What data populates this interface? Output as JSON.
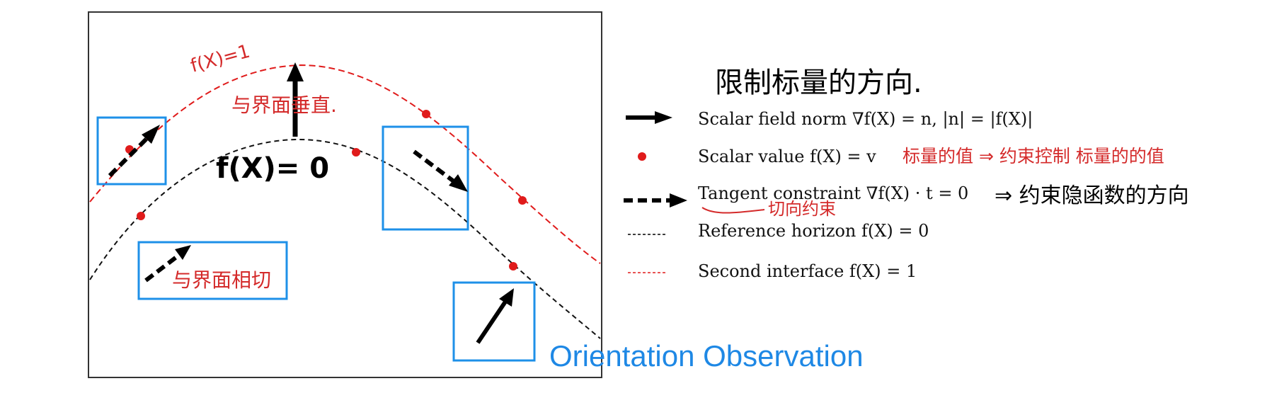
{
  "colors": {
    "black": "#000000",
    "red": "#e01b1b",
    "blue_box": "#1e90e8",
    "handwriting_red": "#d42a2a",
    "caption_blue": "#1e88e5"
  },
  "plot": {
    "curve_labels": {
      "upper": "f(X)=1",
      "lower": "f(X)= 0"
    },
    "annotations": {
      "top_label": "与界面垂直.",
      "box_label": "与界面相切"
    }
  },
  "legend": {
    "items": [
      {
        "icon": "solid-arrow-icon",
        "label": "Scalar field norm ∇f(X) = n, |n| = |f(X)|"
      },
      {
        "icon": "red-dot-icon",
        "label": "Scalar value f(X) = v"
      },
      {
        "icon": "dashed-arrow-icon",
        "label": "Tangent constraint ∇f(X) · t = 0"
      },
      {
        "icon": "black-dashed-line-icon",
        "label": "Reference horizon f(X) = 0"
      },
      {
        "icon": "red-dashed-line-icon",
        "label": "Second interface f(X) = 1"
      }
    ],
    "notes": {
      "header": "限制标量的方向.",
      "scalar_value_note": "标量的值 ⇒ 约束控制 标量的的值",
      "tangent_note": "⇒ 约束隐函数的方向",
      "tangent_underline_note": "切向约束"
    }
  },
  "caption": "Orientation Observation"
}
